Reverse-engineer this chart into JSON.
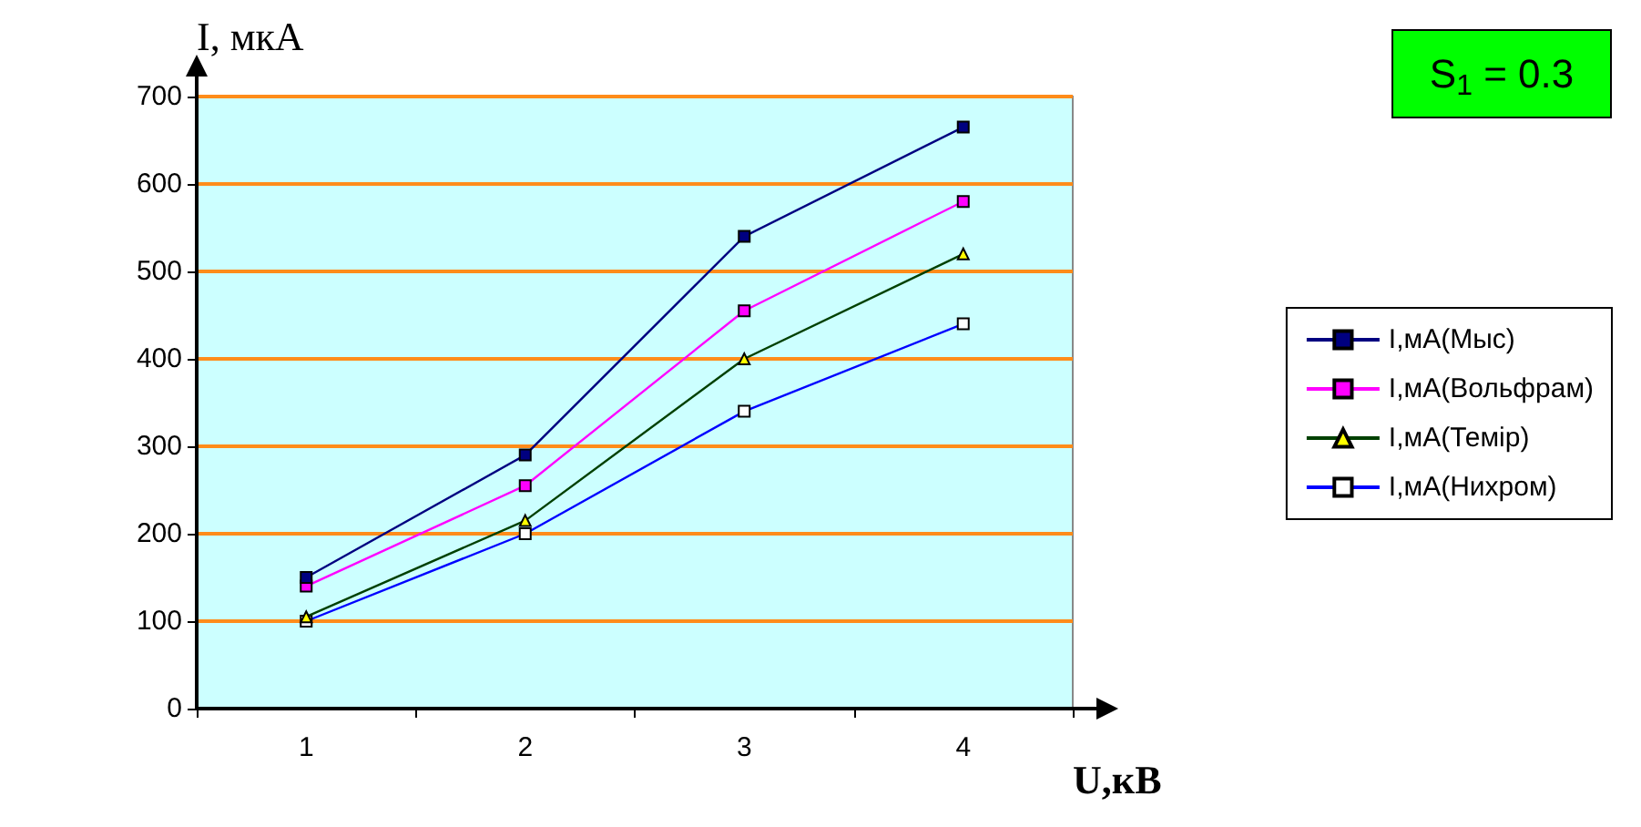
{
  "chart_data": {
    "type": "line",
    "ylabel": "I, мкА",
    "xlabel": "U,кВ",
    "categories": [
      "1",
      "2",
      "3",
      "4"
    ],
    "series": [
      {
        "name": "I,мА(Мыс)",
        "color": "#000080",
        "marker": "square",
        "values": [
          150,
          290,
          540,
          665
        ]
      },
      {
        "name": "I,мА(Вольфрам)",
        "color": "#ff00ff",
        "marker": "square",
        "values": [
          140,
          255,
          455,
          580
        ]
      },
      {
        "name": "I,мА(Темір)",
        "color": "#ffff00",
        "marker": "triangle",
        "values": [
          105,
          215,
          400,
          520
        ]
      },
      {
        "name": "I,мА(Нихром)",
        "color": "#ffffff",
        "marker": "square",
        "values": [
          100,
          200,
          340,
          440
        ]
      }
    ],
    "ylim": [
      0,
      700
    ],
    "yticks": [
      0,
      100,
      200,
      300,
      400,
      500,
      600,
      700
    ],
    "grid": "y",
    "legend": "right",
    "annotations": [
      "S$_{1}$ = 0.3"
    ]
  }
}
